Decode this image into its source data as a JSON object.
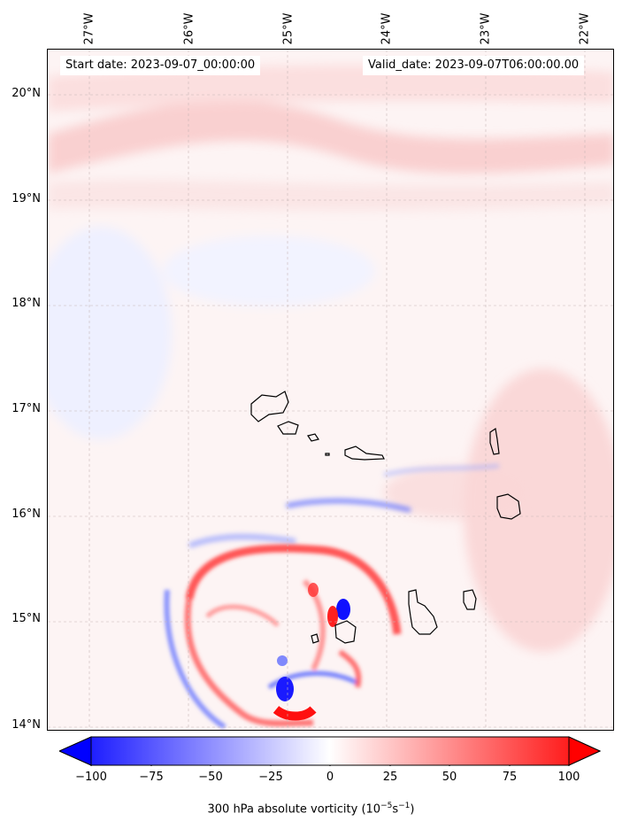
{
  "map": {
    "start_date_text": "Start date: 2023-09-07_00:00:00",
    "valid_date_text": "Valid_date: 2023-09-07T06:00:00.00",
    "longitude_labels": [
      "27°W",
      "26°W",
      "25°W",
      "24°W",
      "23°W",
      "22°W"
    ],
    "latitude_labels": [
      "20°N",
      "19°N",
      "18°N",
      "17°N",
      "16°N",
      "15°N",
      "14°N"
    ],
    "field": "300 hPa absolute vorticity",
    "colorscale": {
      "min_color": "#0000ff",
      "mid_color": "#ffffff",
      "max_color": "#ff0000"
    }
  },
  "colorbar": {
    "label": "300 hPa absolute vorticity (10",
    "label_exp1": "−5",
    "label_mid": "s",
    "label_exp2": "−1",
    "label_end": ")",
    "ticks": [
      "−100",
      "−75",
      "−50",
      "−25",
      "0",
      "25",
      "50",
      "75",
      "100"
    ]
  }
}
